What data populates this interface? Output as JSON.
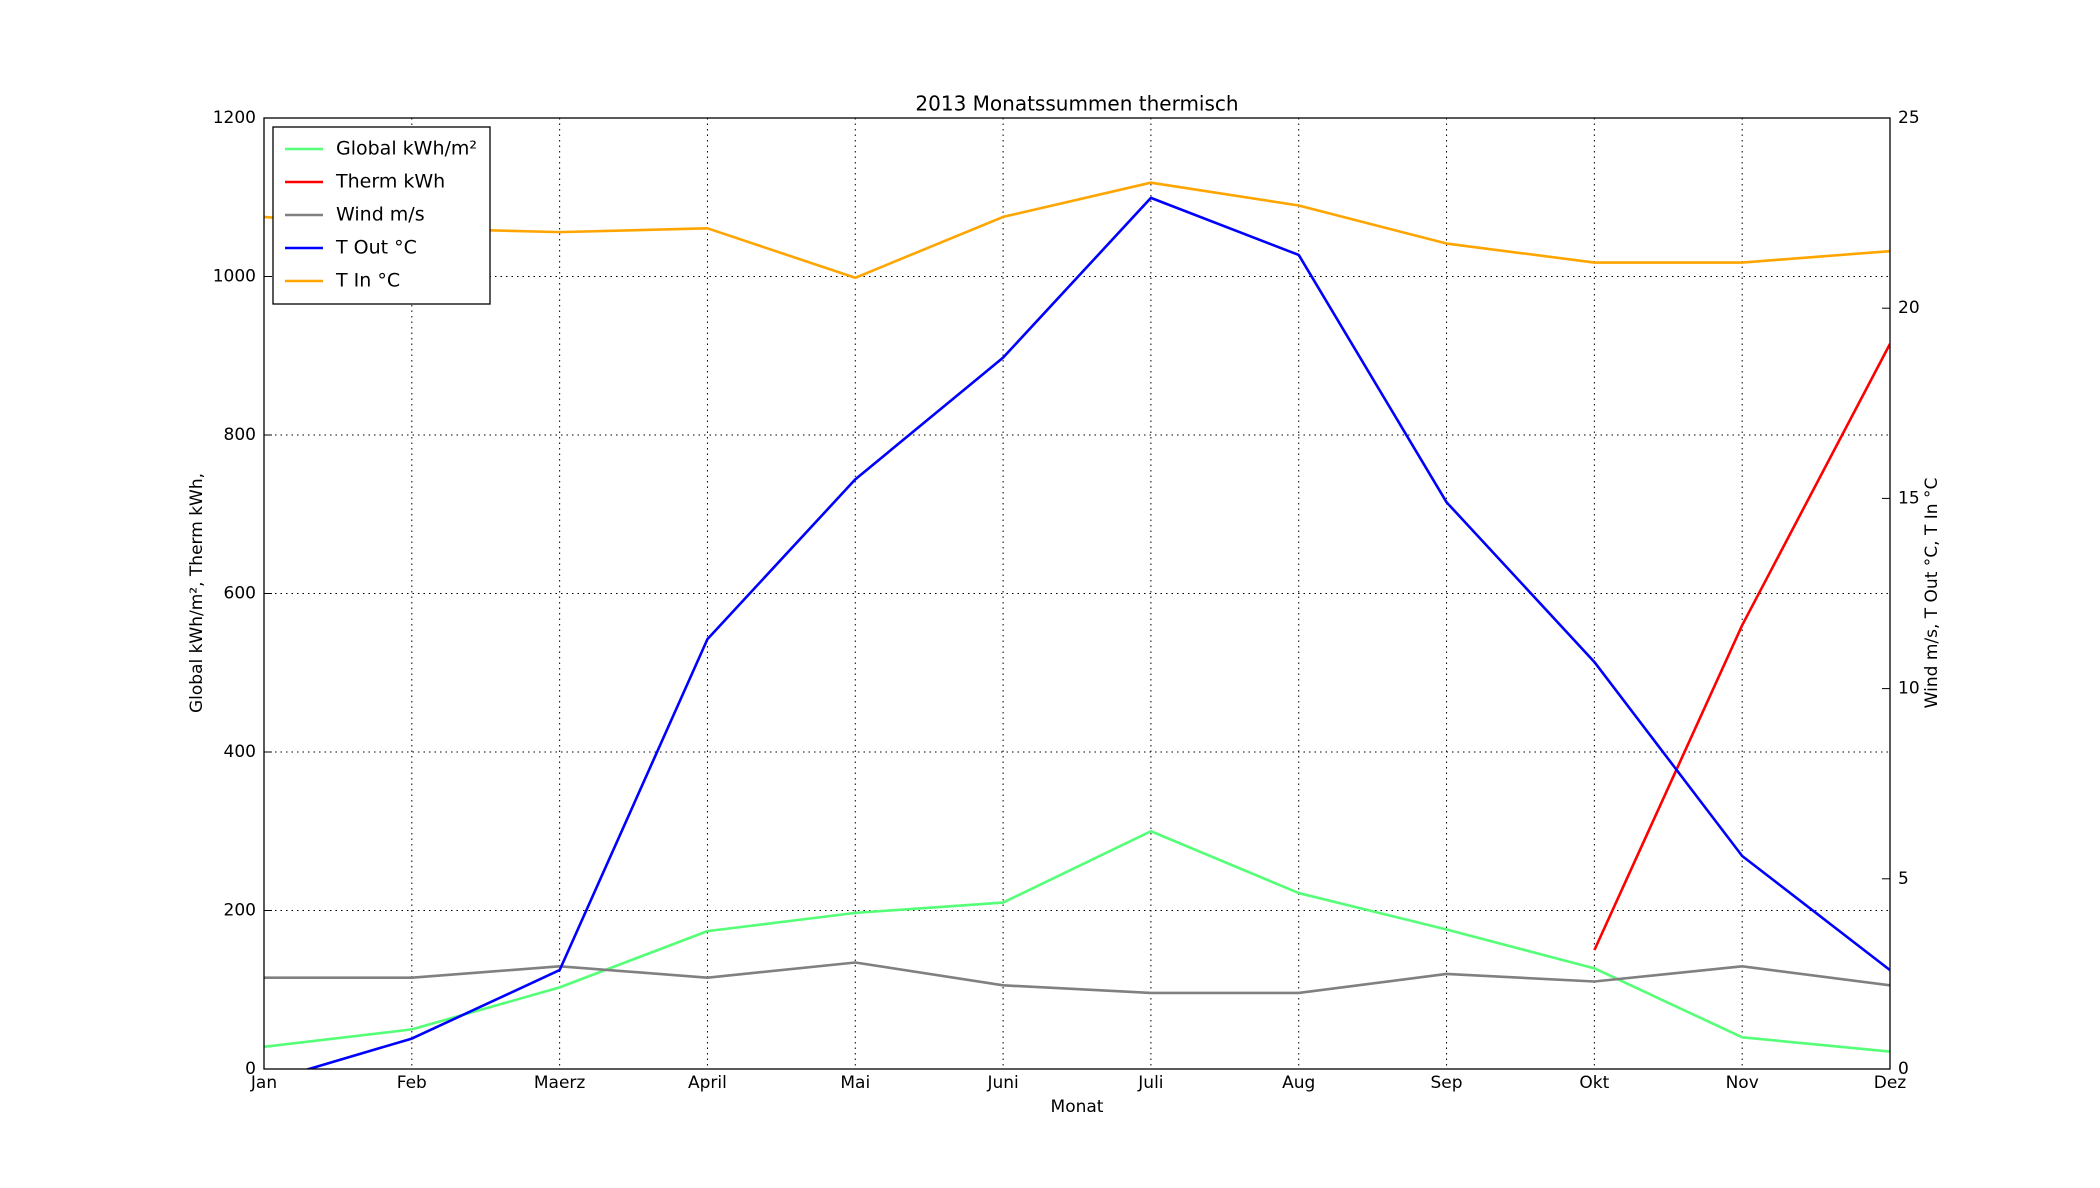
{
  "chart_data": {
    "type": "line",
    "title": "2013 Monatssummen thermisch",
    "x_label": "Monat",
    "y_label": "Global kWh/m², Therm kWh,",
    "y2_label": "Wind m/s, T Out °C, T In °C",
    "categories": [
      "Jan",
      "Feb",
      "Maerz",
      "April",
      "Mai",
      "Juni",
      "Juli",
      "Aug",
      "Sep",
      "Okt",
      "Nov",
      "Dez"
    ],
    "series": [
      {
        "name": "Global kWh/m²",
        "color": "#55ff77",
        "values": [
          28,
          50,
          103,
          174,
          197,
          210,
          300,
          222,
          176,
          127,
          40,
          22
        ]
      },
      {
        "name": "Therm kWh",
        "color": "#ff0000",
        "values": [
          null,
          null,
          null,
          null,
          null,
          null,
          null,
          null,
          null,
          150,
          560,
          915
        ]
      },
      {
        "name": "Wind m/s",
        "color": "#808080",
        "axis": "y2",
        "values": [
          2.4,
          2.4,
          2.7,
          2.4,
          2.8,
          2.2,
          2.0,
          2.0,
          2.5,
          2.3,
          2.7,
          2.2
        ]
      },
      {
        "name": "T Out °C",
        "color": "#0000ff",
        "axis": "y2",
        "values": [
          -0.35,
          0.8,
          2.6,
          11.3,
          15.5,
          18.7,
          22.9,
          21.4,
          14.9,
          10.7,
          5.6,
          2.6
        ]
      },
      {
        "name": "T In °C",
        "color": "#ffa500",
        "axis": "y2",
        "values": [
          22.4,
          22.1,
          22.0,
          22.1,
          20.8,
          22.4,
          23.3,
          22.7,
          21.7,
          21.2,
          21.2,
          21.5
        ]
      }
    ],
    "ylim": [
      0,
      1200
    ],
    "yticks": [
      0,
      200,
      400,
      600,
      800,
      1000,
      1200
    ],
    "y2lim": [
      0,
      25
    ],
    "y2ticks": [
      0,
      5,
      10,
      15,
      20,
      25
    ],
    "grid": true,
    "legend": "upper left"
  }
}
